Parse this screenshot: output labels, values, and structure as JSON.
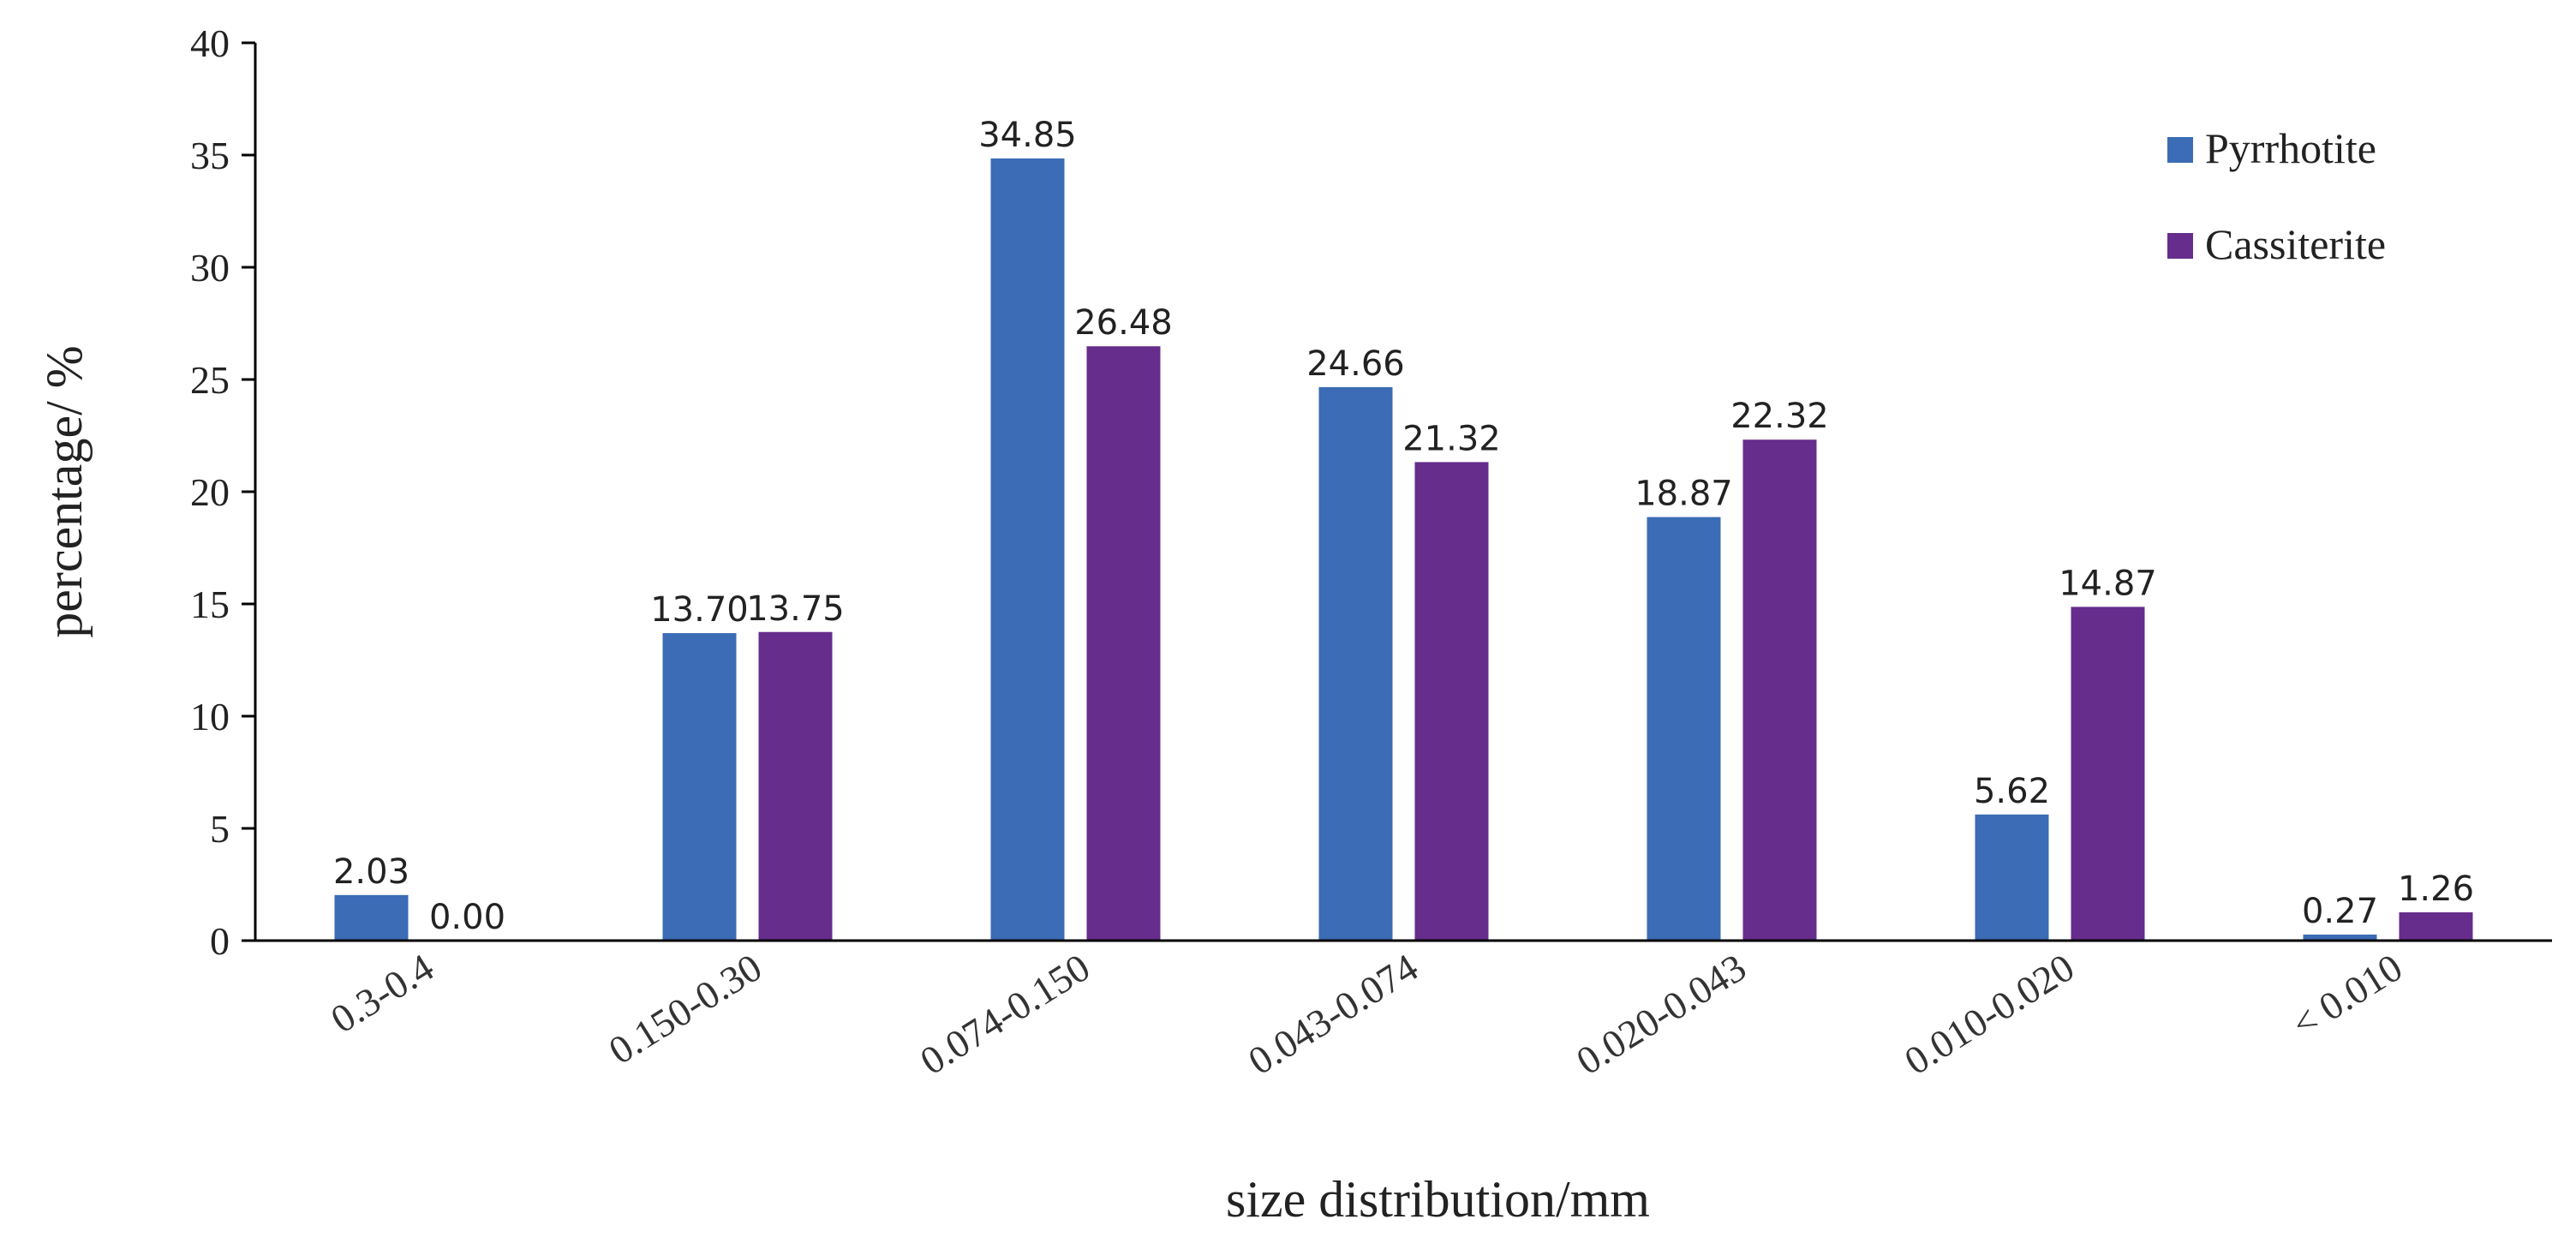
{
  "chart_data": {
    "type": "bar",
    "title": "",
    "xlabel": "size distribution/mm",
    "ylabel": "percentage/ %",
    "ylim": [
      0,
      40
    ],
    "yticks": [
      0,
      5,
      10,
      15,
      20,
      25,
      30,
      35,
      40
    ],
    "categories": [
      "0.3-0.4",
      "0.150-0.30",
      "0.074-0.150",
      "0.043-0.074",
      "0.020-0.043",
      "0.010-0.020",
      "< 0.010"
    ],
    "series": [
      {
        "name": "Pyrrhotite",
        "color": "#3B6CB5",
        "values": [
          2.03,
          13.7,
          34.85,
          24.66,
          18.87,
          5.62,
          0.27
        ],
        "labels": [
          "2.03",
          "13.70",
          "34.85",
          "24.66",
          "18.87",
          "5.62",
          "0.27"
        ]
      },
      {
        "name": "Cassiterite",
        "color": "#662D8C",
        "values": [
          0.0,
          13.75,
          26.48,
          21.32,
          22.32,
          14.87,
          1.26
        ],
        "labels": [
          "0.00",
          "13.75",
          "26.48",
          "21.32",
          "22.32",
          "14.87",
          "1.26"
        ]
      }
    ],
    "grid": false,
    "legend": "top-right"
  }
}
